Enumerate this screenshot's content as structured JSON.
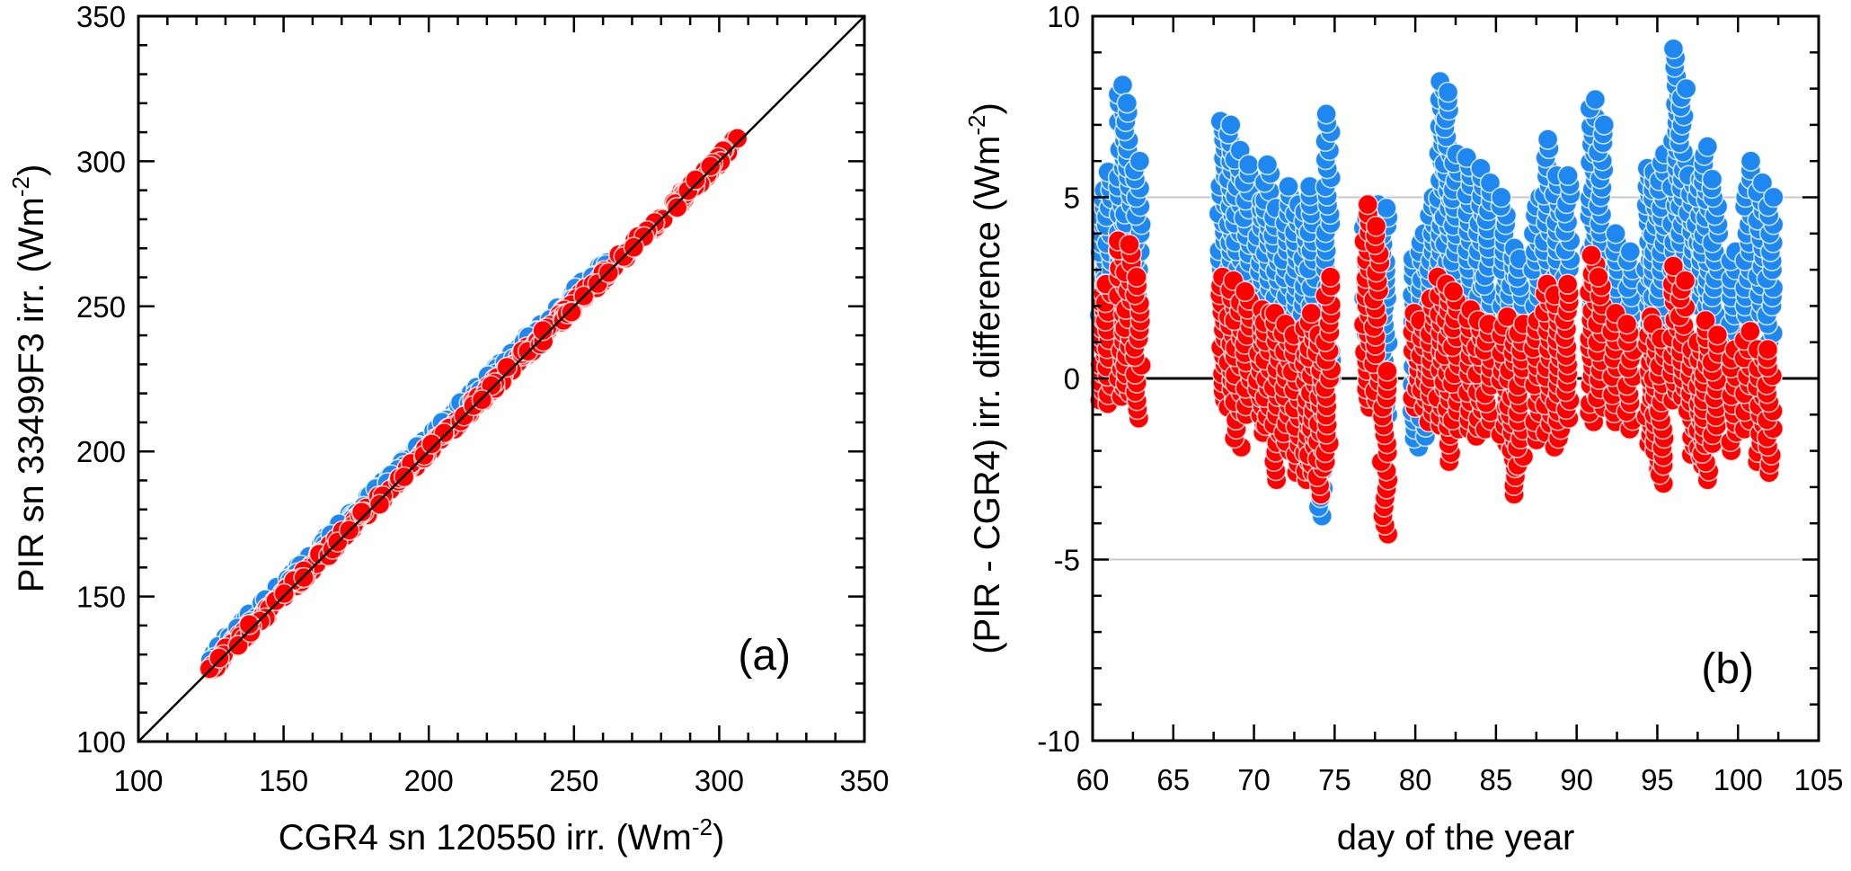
{
  "chart_data": [
    {
      "id": "a",
      "type": "scatter",
      "panel_label": "(a)",
      "title": "",
      "xlabel": "CGR4 sn 120550 irr. (Wm",
      "xlabel_sup": "-2",
      "xlabel_end": ")",
      "ylabel": "PIR sn 33499F3 irr. (Wm",
      "ylabel_sup": "-2",
      "ylabel_end": ")",
      "xlim": [
        100,
        350
      ],
      "ylim": [
        100,
        350
      ],
      "x_ticks": [
        100,
        150,
        200,
        250,
        300,
        350
      ],
      "y_ticks": [
        100,
        150,
        200,
        250,
        300,
        350
      ],
      "x_minor_step": 10,
      "y_minor_step": 10,
      "reference_line": "1:1 line (y = x)",
      "grid": false,
      "series": [
        {
          "name": "blue series",
          "color": "#1e88f0",
          "x_range": [
            124,
            262
          ],
          "offset_range": [
            1.5,
            6.0
          ],
          "description": "points lying slightly above the 1:1 line, PIR minus CGR4 approx +1 to +6"
        },
        {
          "name": "red series",
          "color": "#ff0000",
          "x_range": [
            124,
            307
          ],
          "offset_range": [
            -1.5,
            2.5
          ],
          "description": "points lying on the 1:1 line, PIR minus CGR4 approx -2 to +3"
        }
      ]
    },
    {
      "id": "b",
      "type": "scatter",
      "panel_label": "(b)",
      "title": "",
      "xlabel": "day of the year",
      "ylabel": "(PIR - CGR4) irr. difference (Wm",
      "ylabel_sup": "-2",
      "ylabel_end": ")",
      "xlim": [
        60,
        105
      ],
      "ylim": [
        -10,
        10
      ],
      "x_ticks": [
        60,
        65,
        70,
        75,
        80,
        85,
        90,
        95,
        100,
        105
      ],
      "y_ticks": [
        -10,
        -5,
        0,
        5,
        10
      ],
      "x_minor_step": 2.5,
      "y_minor_step": 1,
      "gridlines_y": [
        -5,
        5
      ],
      "zero_line": 0,
      "grid": true,
      "series": [
        {
          "name": "blue series",
          "color": "#1e88f0",
          "columns": [
            {
              "day": 60.6,
              "min": 1.5,
              "max": 5.2
            },
            {
              "day": 61.0,
              "min": 2.0,
              "max": 5.7
            },
            {
              "day": 61.8,
              "min": 3.0,
              "max": 8.1
            },
            {
              "day": 62.2,
              "min": 2.5,
              "max": 7.6
            },
            {
              "day": 62.8,
              "min": 1.5,
              "max": 6.0
            },
            {
              "day": 68.0,
              "min": 2.0,
              "max": 7.1
            },
            {
              "day": 68.6,
              "min": 2.0,
              "max": 7.0
            },
            {
              "day": 69.0,
              "min": 1.5,
              "max": 6.3
            },
            {
              "day": 69.6,
              "min": 1.0,
              "max": 5.9
            },
            {
              "day": 70.4,
              "min": 1.0,
              "max": 4.9
            },
            {
              "day": 70.8,
              "min": 1.5,
              "max": 5.9
            },
            {
              "day": 71.4,
              "min": 0.5,
              "max": 4.7
            },
            {
              "day": 72.0,
              "min": 0.5,
              "max": 5.3
            },
            {
              "day": 72.6,
              "min": 1.0,
              "max": 4.8
            },
            {
              "day": 73.2,
              "min": 0.5,
              "max": 4.6
            },
            {
              "day": 73.6,
              "min": 1.0,
              "max": 5.3
            },
            {
              "day": 74.1,
              "min": -3.8,
              "max": 1.8
            },
            {
              "day": 74.6,
              "min": 0.0,
              "max": 7.3
            },
            {
              "day": 77.0,
              "min": 1.0,
              "max": 4.4
            },
            {
              "day": 77.6,
              "min": -0.5,
              "max": 4.8
            },
            {
              "day": 78.1,
              "min": -1.0,
              "max": 4.7
            },
            {
              "day": 80.0,
              "min": -1.9,
              "max": 3.3
            },
            {
              "day": 80.5,
              "min": -1.6,
              "max": 4.0
            },
            {
              "day": 81.0,
              "min": -1.0,
              "max": 5.0
            },
            {
              "day": 81.6,
              "min": 1.0,
              "max": 8.2
            },
            {
              "day": 82.0,
              "min": 1.0,
              "max": 7.9
            },
            {
              "day": 82.5,
              "min": 1.5,
              "max": 6.2
            },
            {
              "day": 83.4,
              "min": 1.5,
              "max": 6.1
            },
            {
              "day": 84.0,
              "min": 1.5,
              "max": 5.8
            },
            {
              "day": 84.5,
              "min": 1.8,
              "max": 5.4
            },
            {
              "day": 85.5,
              "min": 2.0,
              "max": 5.0
            },
            {
              "day": 86.0,
              "min": 0.5,
              "max": 3.6
            },
            {
              "day": 86.5,
              "min": 0.5,
              "max": 3.3
            },
            {
              "day": 87.5,
              "min": 1.5,
              "max": 5.0
            },
            {
              "day": 88.2,
              "min": 2.5,
              "max": 6.6
            },
            {
              "day": 88.8,
              "min": 2.0,
              "max": 5.6
            },
            {
              "day": 89.4,
              "min": 2.0,
              "max": 5.6
            },
            {
              "day": 91.0,
              "min": 2.0,
              "max": 7.7
            },
            {
              "day": 91.5,
              "min": 1.8,
              "max": 7.0
            },
            {
              "day": 92.4,
              "min": 1.5,
              "max": 4.0
            },
            {
              "day": 93.3,
              "min": 1.0,
              "max": 3.5
            },
            {
              "day": 94.5,
              "min": 1.5,
              "max": 5.8
            },
            {
              "day": 94.9,
              "min": 2.0,
              "max": 5.7
            },
            {
              "day": 95.3,
              "min": 1.0,
              "max": 6.2
            },
            {
              "day": 96.1,
              "min": 3.0,
              "max": 9.1
            },
            {
              "day": 96.6,
              "min": 2.5,
              "max": 8.0
            },
            {
              "day": 97.1,
              "min": 2.0,
              "max": 5.6
            },
            {
              "day": 97.6,
              "min": 2.0,
              "max": 5.5
            },
            {
              "day": 98.0,
              "min": 2.0,
              "max": 6.4
            },
            {
              "day": 98.6,
              "min": 1.5,
              "max": 5.5
            },
            {
              "day": 99.7,
              "min": 1.0,
              "max": 3.5
            },
            {
              "day": 100.6,
              "min": 1.5,
              "max": 6.0
            },
            {
              "day": 101.4,
              "min": 1.8,
              "max": 5.4
            },
            {
              "day": 102.0,
              "min": 1.0,
              "max": 5.0
            }
          ]
        },
        {
          "name": "red series",
          "color": "#ff0000",
          "columns": [
            {
              "day": 60.6,
              "min": -0.6,
              "max": 2.6
            },
            {
              "day": 61.0,
              "min": -0.7,
              "max": 2.6
            },
            {
              "day": 61.8,
              "min": -0.5,
              "max": 3.8
            },
            {
              "day": 62.2,
              "min": -0.4,
              "max": 3.7
            },
            {
              "day": 62.8,
              "min": -1.1,
              "max": 2.8
            },
            {
              "day": 68.0,
              "min": -0.6,
              "max": 2.8
            },
            {
              "day": 68.6,
              "min": -0.8,
              "max": 2.7
            },
            {
              "day": 69.0,
              "min": -1.9,
              "max": 2.1
            },
            {
              "day": 69.6,
              "min": -1.0,
              "max": 2.4
            },
            {
              "day": 70.4,
              "min": -1.5,
              "max": 1.9
            },
            {
              "day": 70.8,
              "min": -1.3,
              "max": 1.8
            },
            {
              "day": 71.4,
              "min": -2.8,
              "max": 1.8
            },
            {
              "day": 72.0,
              "min": -2.0,
              "max": 1.5
            },
            {
              "day": 72.6,
              "min": -2.6,
              "max": 1.2
            },
            {
              "day": 73.2,
              "min": -2.8,
              "max": 1.4
            },
            {
              "day": 73.6,
              "min": -2.6,
              "max": 1.8
            },
            {
              "day": 74.1,
              "min": -3.2,
              "max": 1.2
            },
            {
              "day": 74.6,
              "min": -2.3,
              "max": 2.8
            },
            {
              "day": 77.0,
              "min": -0.8,
              "max": 4.8
            },
            {
              "day": 77.6,
              "min": -0.6,
              "max": 4.2
            },
            {
              "day": 78.1,
              "min": -4.3,
              "max": 0.2
            },
            {
              "day": 80.0,
              "min": -0.8,
              "max": 1.8
            },
            {
              "day": 80.5,
              "min": -0.8,
              "max": 1.6
            },
            {
              "day": 81.0,
              "min": -1.2,
              "max": 2.2
            },
            {
              "day": 81.6,
              "min": -1.3,
              "max": 2.8
            },
            {
              "day": 82.0,
              "min": -2.3,
              "max": 2.6
            },
            {
              "day": 82.5,
              "min": -1.4,
              "max": 2.4
            },
            {
              "day": 83.4,
              "min": -1.4,
              "max": 1.9
            },
            {
              "day": 84.0,
              "min": -1.6,
              "max": 1.6
            },
            {
              "day": 84.5,
              "min": -1.4,
              "max": 1.5
            },
            {
              "day": 85.5,
              "min": -1.8,
              "max": 1.7
            },
            {
              "day": 86.0,
              "min": -3.2,
              "max": 1.2
            },
            {
              "day": 86.5,
              "min": -2.4,
              "max": 1.5
            },
            {
              "day": 87.5,
              "min": -1.7,
              "max": 1.6
            },
            {
              "day": 88.2,
              "min": -1.5,
              "max": 2.6
            },
            {
              "day": 88.8,
              "min": -1.9,
              "max": 2.3
            },
            {
              "day": 89.4,
              "min": -1.1,
              "max": 2.6
            },
            {
              "day": 91.0,
              "min": -1.2,
              "max": 3.4
            },
            {
              "day": 91.5,
              "min": -0.8,
              "max": 2.8
            },
            {
              "day": 92.4,
              "min": -1.2,
              "max": 1.8
            },
            {
              "day": 93.3,
              "min": -1.4,
              "max": 1.5
            },
            {
              "day": 94.5,
              "min": -1.8,
              "max": 1.7
            },
            {
              "day": 94.9,
              "min": -2.5,
              "max": 1.5
            },
            {
              "day": 95.3,
              "min": -2.9,
              "max": 1.1
            },
            {
              "day": 96.1,
              "min": -0.6,
              "max": 3.1
            },
            {
              "day": 96.6,
              "min": -0.5,
              "max": 2.7
            },
            {
              "day": 97.1,
              "min": -2.1,
              "max": 0.8
            },
            {
              "day": 97.6,
              "min": -2.4,
              "max": 1.0
            },
            {
              "day": 98.0,
              "min": -2.8,
              "max": 1.6
            },
            {
              "day": 98.6,
              "min": -1.8,
              "max": 1.2
            },
            {
              "day": 99.7,
              "min": -2.0,
              "max": 0.8
            },
            {
              "day": 100.6,
              "min": -1.4,
              "max": 1.3
            },
            {
              "day": 101.4,
              "min": -2.3,
              "max": 0.8
            },
            {
              "day": 102.0,
              "min": -2.6,
              "max": 0.8
            }
          ]
        }
      ]
    }
  ]
}
